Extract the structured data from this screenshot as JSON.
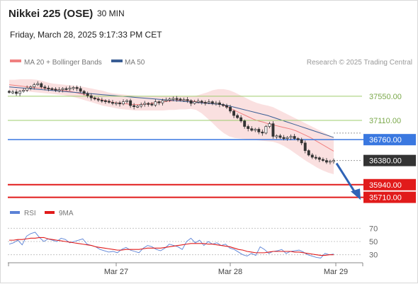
{
  "header": {
    "title": "Nikkei 225 (OSE)",
    "interval": "30 MIN",
    "datetime": "Friday, March 28, 2025 9:17:33 PM CET"
  },
  "legend": {
    "bollinger": "MA 20 + Bollinger Bands",
    "ma50": "MA 50",
    "credit": "Research © 2025 Trading Central",
    "rsi": "RSI",
    "rsi_ma": "9MA"
  },
  "colors": {
    "green_line": "#9fcc6e",
    "blue_line": "#3a78e0",
    "red_line": "#e11b1b",
    "current_price": "#333333",
    "bollinger_band": "#f6cccc",
    "bollinger_mid": "#f08080",
    "ma50": "#3a5e95",
    "rsi": "#5b82d6",
    "rsi_ma": "#e11b1b"
  },
  "chart_data": [
    {
      "type": "candlestick",
      "x_ticks": [
        "Mar 27",
        "Mar 28",
        "Mar 29"
      ],
      "ylim": [
        35550,
        38000
      ],
      "levels": [
        {
          "value": 37550,
          "label": "37550.00",
          "style": "green"
        },
        {
          "value": 37110,
          "label": "37110.00",
          "style": "green"
        },
        {
          "value": 36760,
          "label": "36760.00",
          "style": "blue"
        },
        {
          "value": 36380,
          "label": "36380.00",
          "style": "current"
        },
        {
          "value": 35940,
          "label": "35940.00",
          "style": "red"
        },
        {
          "value": 35710,
          "label": "35710.00",
          "style": "red"
        }
      ],
      "closes": [
        37620,
        37630,
        37600,
        37640,
        37660,
        37700,
        37720,
        37760,
        37780,
        37720,
        37700,
        37690,
        37680,
        37660,
        37670,
        37690,
        37680,
        37700,
        37710,
        37690,
        37640,
        37600,
        37560,
        37520,
        37500,
        37480,
        37470,
        37460,
        37440,
        37420,
        37430,
        37410,
        37450,
        37470,
        37380,
        37360,
        37370,
        37400,
        37420,
        37410,
        37390,
        37450,
        37430,
        37470,
        37480,
        37500,
        37510,
        37500,
        37480,
        37490,
        37470,
        37420,
        37450,
        37460,
        37440,
        37430,
        37450,
        37420,
        37430,
        37400,
        37380,
        37350,
        37280,
        37200,
        37160,
        37100,
        37000,
        36960,
        36930,
        36950,
        36900,
        36880,
        37000,
        37050,
        36820,
        36830,
        36800,
        36780,
        36800,
        36820,
        36780,
        36760,
        36700,
        36560,
        36480,
        36440,
        36430,
        36400,
        36380,
        36350,
        36370,
        36380
      ],
      "ma20": [
        37760,
        37750,
        37740,
        37730,
        37720,
        37710,
        37700,
        37700,
        37690,
        37680,
        37670,
        37660,
        37650,
        37640,
        37620,
        37600,
        37580,
        37550,
        37520,
        37500,
        37480,
        37460,
        37440,
        37430,
        37420,
        37410,
        37400,
        37400,
        37400,
        37410,
        37420,
        37430,
        37440,
        37450,
        37460,
        37470,
        37480,
        37480,
        37470,
        37460,
        37450,
        37440,
        37430,
        37420,
        37410,
        37400,
        37370,
        37330,
        37290,
        37250,
        37210,
        37170,
        37130,
        37100,
        37080,
        37050,
        37030,
        37010,
        36990,
        36970,
        36950,
        36920,
        36880,
        36840,
        36800,
        36750,
        36700,
        36650,
        36600,
        36550
      ],
      "band_upper": [
        37850,
        37850,
        37860,
        37860,
        37860,
        37850,
        37830,
        37800,
        37780,
        37770,
        37760,
        37750,
        37740,
        37730,
        37710,
        37690,
        37670,
        37650,
        37620,
        37600,
        37590,
        37580,
        37570,
        37560,
        37550,
        37550,
        37550,
        37550,
        37550,
        37550,
        37550,
        37550,
        37550,
        37550,
        37560,
        37590,
        37620,
        37660,
        37680,
        37680,
        37660,
        37620,
        37570,
        37520,
        37470,
        37430,
        37400,
        37380,
        37350,
        37300,
        37250,
        37200,
        37150,
        37100,
        37050,
        37000,
        36950,
        36900,
        36850,
        36800
      ],
      "band_lower": [
        37650,
        37650,
        37640,
        37640,
        37630,
        37620,
        37610,
        37600,
        37590,
        37580,
        37570,
        37550,
        37530,
        37500,
        37470,
        37440,
        37410,
        37380,
        37360,
        37340,
        37320,
        37310,
        37300,
        37290,
        37290,
        37290,
        37290,
        37290,
        37290,
        37300,
        37300,
        37310,
        37310,
        37320,
        37300,
        37240,
        37150,
        37060,
        36960,
        36880,
        36820,
        36790,
        36780,
        36770,
        36760,
        36750,
        36740,
        36730,
        36720,
        36690,
        36640,
        36580,
        36510,
        36440,
        36370,
        36310,
        36250,
        36200,
        36160,
        36130
      ],
      "ma50": [
        37720,
        37710,
        37700,
        37690,
        37680,
        37670,
        37660,
        37650,
        37640,
        37630,
        37620,
        37610,
        37600,
        37590,
        37580,
        37570,
        37560,
        37550,
        37540,
        37530,
        37520,
        37510,
        37500,
        37490,
        37480,
        37470,
        37460,
        37450,
        37440,
        37430,
        37420,
        37410,
        37400,
        37380,
        37350,
        37320,
        37290,
        37260,
        37230,
        37200,
        37160,
        37120,
        37080,
        37040,
        37000,
        36960,
        36920,
        36880,
        36840,
        36800
      ]
    },
    {
      "type": "line",
      "title": "RSI",
      "ylim": [
        20,
        80
      ],
      "y_ticks": [
        70,
        50,
        30
      ],
      "series": [
        {
          "name": "RSI",
          "values": [
            46,
            48,
            52,
            45,
            58,
            62,
            64,
            56,
            50,
            54,
            52,
            50,
            55,
            53,
            48,
            50,
            52,
            54,
            46,
            44,
            42,
            38,
            36,
            34,
            35,
            33,
            38,
            41,
            37,
            35,
            33,
            40,
            44,
            42,
            38,
            36,
            40,
            46,
            44,
            42,
            38,
            50,
            55,
            48,
            52,
            44,
            50,
            46,
            48,
            44,
            46,
            40,
            38,
            34,
            30,
            28,
            32,
            29,
            42,
            38,
            32,
            35,
            36,
            38,
            32,
            35,
            36,
            37,
            34,
            30,
            28,
            26,
            25,
            32,
            30,
            31
          ]
        },
        {
          "name": "9MA",
          "values": [
            52,
            52,
            53,
            53,
            54,
            55,
            55,
            56,
            56,
            54,
            53,
            52,
            51,
            50,
            49,
            48,
            47,
            46,
            45,
            44,
            42,
            41,
            40,
            39,
            38,
            37,
            37,
            38,
            38,
            38,
            38,
            39,
            40,
            40,
            40,
            40,
            41,
            42,
            43,
            44,
            45,
            46,
            47,
            47,
            47,
            47,
            46,
            46,
            45,
            44,
            43,
            42,
            40,
            38,
            37,
            35,
            34,
            33,
            33,
            33,
            34,
            35,
            35,
            35,
            35,
            35,
            34,
            34,
            33,
            32,
            31,
            30,
            29,
            29,
            30,
            30
          ]
        }
      ]
    }
  ]
}
